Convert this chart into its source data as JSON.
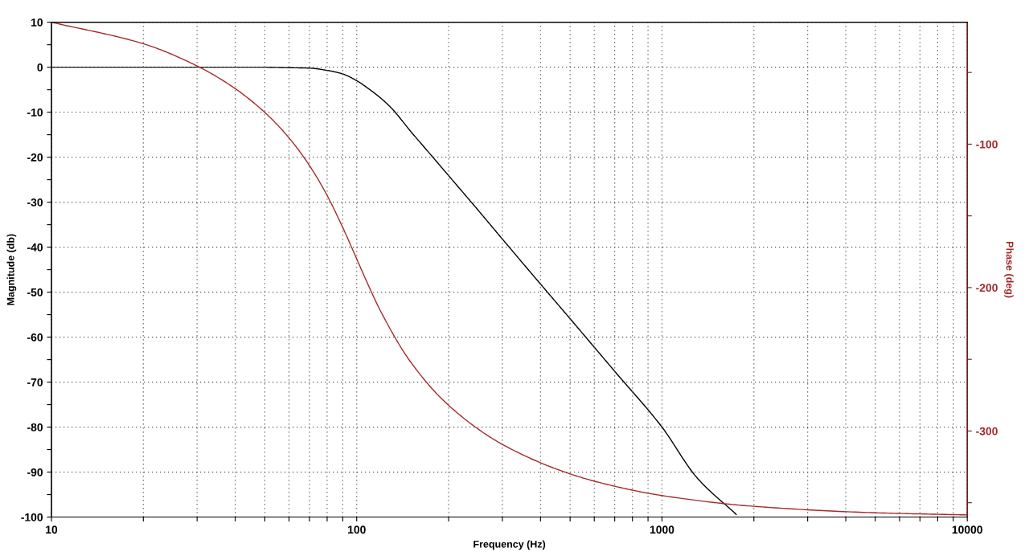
{
  "chart_data": {
    "type": "line",
    "xlabel": "Frequency (Hz)",
    "ylabel": "Magnitude (db)",
    "y2label": "Phase (deg)",
    "log": "x",
    "grid": true,
    "line_style": "solid",
    "xlim": [
      10,
      10000
    ],
    "xticks": [
      10,
      {
        "value": 20,
        "label": null
      },
      {
        "value": 30,
        "label": null
      },
      {
        "value": 40,
        "label": null
      },
      {
        "value": 50,
        "label": null
      },
      {
        "value": 60,
        "label": null
      },
      {
        "value": 70,
        "label": null
      },
      {
        "value": 80,
        "label": null
      },
      {
        "value": 90,
        "label": null
      },
      100,
      {
        "value": 200,
        "label": null
      },
      {
        "value": 300,
        "label": null
      },
      {
        "value": 400,
        "label": null
      },
      {
        "value": 500,
        "label": null
      },
      {
        "value": 600,
        "label": null
      },
      {
        "value": 700,
        "label": null
      },
      {
        "value": 800,
        "label": null
      },
      {
        "value": 900,
        "label": null
      },
      1000,
      {
        "value": 2000,
        "label": null
      },
      {
        "value": 3000,
        "label": null
      },
      {
        "value": 4000,
        "label": null
      },
      {
        "value": 5000,
        "label": null
      },
      {
        "value": 6000,
        "label": null
      },
      {
        "value": 7000,
        "label": null
      },
      {
        "value": 8000,
        "label": null
      },
      {
        "value": 9000,
        "label": null
      },
      10000
    ],
    "ylim": [
      -100,
      10
    ],
    "yticks": [
      -100,
      {
        "value": -95,
        "label": null
      },
      -90,
      {
        "value": -85,
        "label": null
      },
      -80,
      {
        "value": -75,
        "label": null
      },
      -70,
      {
        "value": -65,
        "label": null
      },
      -60,
      {
        "value": -55,
        "label": null
      },
      -50,
      {
        "value": -45,
        "label": null
      },
      -40,
      {
        "value": -35,
        "label": null
      },
      -30,
      {
        "value": -25,
        "label": null
      },
      -20,
      {
        "value": -15,
        "label": null
      },
      -10,
      {
        "value": -5,
        "label": null
      },
      0,
      {
        "value": 5,
        "label": null
      },
      10
    ],
    "y2lim": [
      -360,
      -15
    ],
    "y2ticks": [
      {
        "value": -350,
        "label": null
      },
      -300,
      {
        "value": -250,
        "label": null
      },
      -200,
      {
        "value": -150,
        "label": null
      },
      -100,
      {
        "value": -50,
        "label": null
      }
    ],
    "series": [
      {
        "color": "#000000",
        "x": [
          10,
          20,
          30,
          40,
          50,
          60,
          70,
          80,
          90,
          100,
          110,
          120,
          130,
          150,
          175,
          200,
          250,
          300,
          400,
          500,
          700,
          1000,
          1300,
          1750
        ],
        "values": [
          0,
          0,
          0,
          0,
          0,
          -0.1,
          -0.2,
          -0.7,
          -1.5,
          -3,
          -4.9,
          -6.9,
          -9.1,
          -14.2,
          -19.5,
          -24.1,
          -31.8,
          -38.2,
          -48.2,
          -55.9,
          -67.6,
          -80,
          -91.2,
          -99.4
        ]
      },
      {
        "color": "#a52a2a",
        "axis": "y2",
        "x": [
          10,
          20,
          30,
          40,
          50,
          60,
          70,
          80,
          90,
          100,
          110,
          120,
          150,
          200,
          300,
          500,
          700,
          1000,
          2000,
          5000,
          10000
        ],
        "values": [
          -15,
          -30,
          -45.5,
          -61.3,
          -77.9,
          -95.6,
          -114.9,
          -135.8,
          -158.1,
          -180,
          -199.9,
          -216.8,
          -251.7,
          -282.1,
          -309.3,
          -329.9,
          -338.5,
          -345,
          -352.5,
          -357,
          -358.5
        ]
      }
    ]
  }
}
